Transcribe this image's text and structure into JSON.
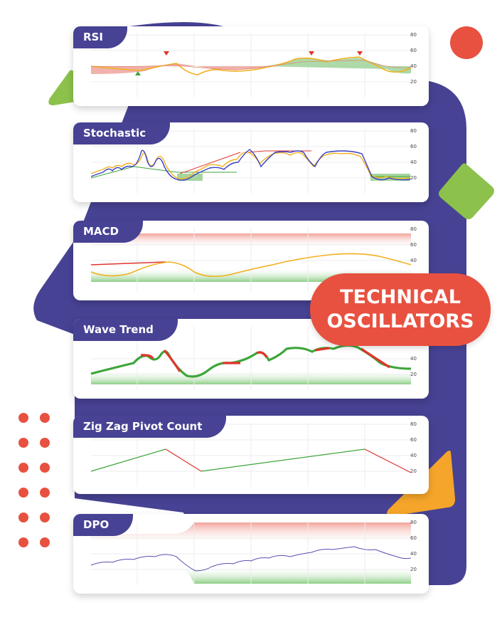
{
  "title": {
    "line1": "TECHNICAL",
    "line2": "OSCILLATORS"
  },
  "colors": {
    "panel": "#474293",
    "accent_red": "#e85140",
    "accent_green": "#8cc14b",
    "accent_orange": "#f5a52a",
    "line_orange": "#f2b01e",
    "line_blue": "#3a3fc4",
    "line_red": "#e0352c",
    "line_green": "#3da53a",
    "line_purple": "#5a4fb0"
  },
  "cards": [
    {
      "id": "rsi",
      "label": "RSI",
      "ticks": [
        "80",
        "60",
        "40",
        "20"
      ]
    },
    {
      "id": "stochastic",
      "label": "Stochastic",
      "ticks": [
        "80",
        "60",
        "40",
        "20"
      ]
    },
    {
      "id": "macd",
      "label": "MACD",
      "ticks": [
        "80",
        "60",
        "40"
      ]
    },
    {
      "id": "wave",
      "label": "Wave Trend",
      "ticks": [
        "40",
        "20"
      ]
    },
    {
      "id": "zigzag",
      "label": "Zig Zag Pivot Count",
      "ticks": [
        "80",
        "60",
        "40",
        "20"
      ]
    },
    {
      "id": "dpo",
      "label": "DPO",
      "ticks": [
        "80",
        "60",
        "40",
        "20"
      ]
    }
  ],
  "decorations": [
    "red-circle",
    "green-triangle",
    "green-diamond",
    "orange-triangle",
    "red-dot-grid"
  ]
}
